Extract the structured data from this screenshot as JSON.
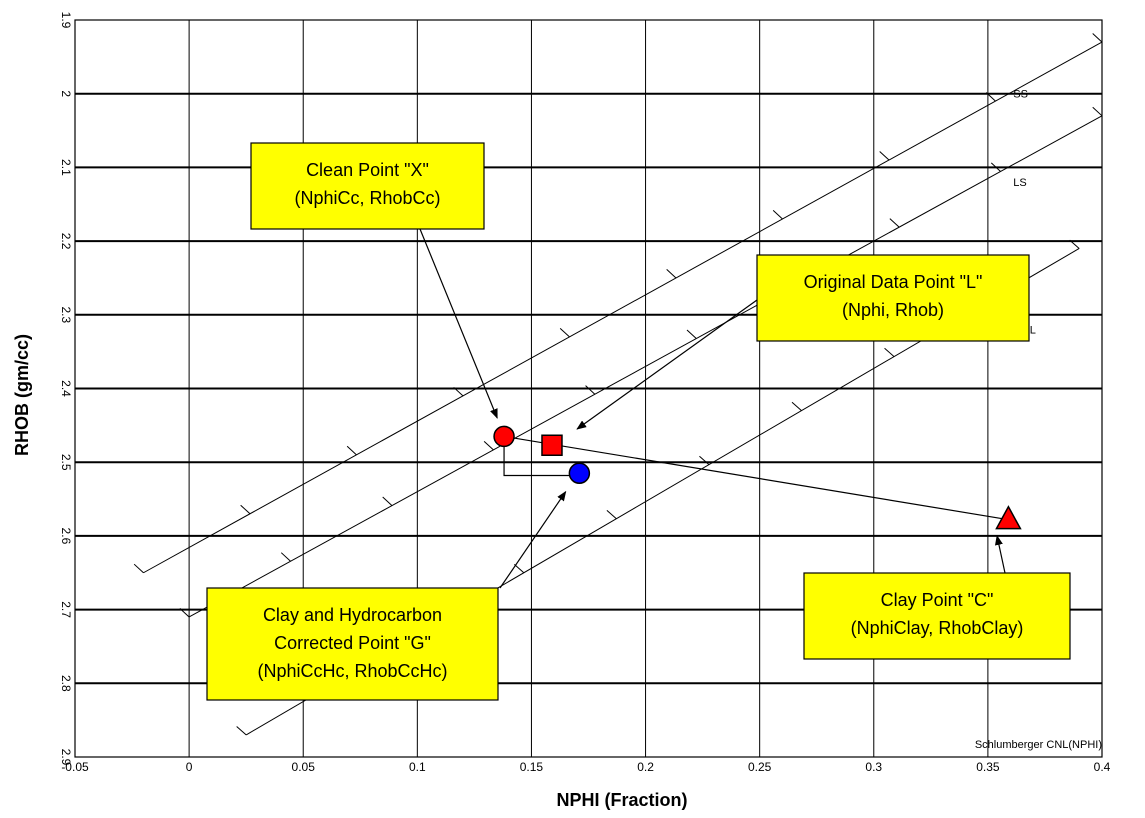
{
  "chart_data": {
    "type": "scatter",
    "xlabel": "NPHI (Fraction)",
    "ylabel": "RHOB (gm/cc)",
    "xlim": [
      -0.05,
      0.4
    ],
    "ylim": [
      1.9,
      2.9
    ],
    "y_inverted": true,
    "grid": true,
    "x_ticks": [
      "-0.05",
      "0",
      "0.05",
      "0.1",
      "0.15",
      "0.2",
      "0.25",
      "0.3",
      "0.35",
      "0.4"
    ],
    "y_ticks": [
      "1.9",
      "2",
      "2.1",
      "2.2",
      "2.3",
      "2.4",
      "2.5",
      "2.6",
      "2.7",
      "2.8",
      "2.9"
    ],
    "crossplot_lines": [
      {
        "label": "SS",
        "points": [
          [
            -0.02,
            2.65
          ],
          [
            0.4,
            1.93
          ]
        ],
        "label_at": [
          0.355,
          2.0
        ]
      },
      {
        "label": "LS",
        "points": [
          [
            0.0,
            2.71
          ],
          [
            0.4,
            2.03
          ]
        ],
        "label_at": [
          0.355,
          2.12
        ]
      },
      {
        "label": "DOL",
        "points": [
          [
            0.025,
            2.87
          ],
          [
            0.39,
            2.21
          ]
        ],
        "label_at": [
          0.355,
          2.32
        ]
      }
    ],
    "points": [
      {
        "name": "Clean Point X",
        "shape": "circle",
        "color": "#ff0000",
        "x": 0.138,
        "y": 2.465
      },
      {
        "name": "Original Data Point L",
        "shape": "square",
        "color": "#ff0000",
        "x": 0.159,
        "y": 2.477
      },
      {
        "name": "Corrected Point G",
        "shape": "circle",
        "color": "#0000ff",
        "x": 0.171,
        "y": 2.515
      },
      {
        "name": "Clay Point C",
        "shape": "triangle",
        "color": "#ff0000",
        "x": 0.359,
        "y": 2.578
      }
    ],
    "clay_line": {
      "from": [
        0.138,
        2.465
      ],
      "to": [
        0.359,
        2.578
      ]
    },
    "construction": [
      [
        0.138,
        2.465
      ],
      [
        0.138,
        2.518
      ],
      [
        0.171,
        2.518
      ]
    ],
    "annotations": [
      {
        "lines": [
          "Clean Point \"X\"",
          "(NphiCc, RhobCc)"
        ],
        "arrow_to": [
          0.135,
          2.44
        ]
      },
      {
        "lines": [
          "Original Data Point \"L\"",
          "(Nphi, Rhob)"
        ],
        "arrow_to": [
          0.17,
          2.455
        ]
      },
      {
        "lines": [
          "Clay and Hydrocarbon",
          "Corrected Point \"G\"",
          "(NphiCcHc, RhobCcHc)"
        ],
        "arrow_to": [
          0.165,
          2.54
        ]
      },
      {
        "lines": [
          "Clay Point \"C\"",
          "(NphiClay, RhobClay)"
        ],
        "arrow_to": [
          0.354,
          2.6
        ]
      }
    ],
    "footnote": "Schlumberger  CNL(NPHI)"
  }
}
